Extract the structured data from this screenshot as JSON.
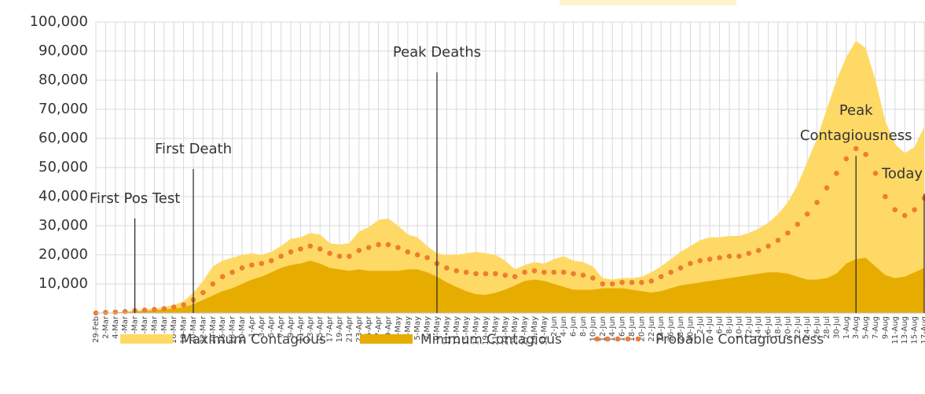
{
  "chart_data": {
    "type": "area",
    "categories": [
      "29-Feb",
      "2-Mar",
      "4-Mar",
      "6-Mar",
      "8-Mar",
      "10-Mar",
      "12-Mar",
      "14-Mar",
      "16-Mar",
      "18-Mar",
      "20-Mar",
      "22-Mar",
      "24-Mar",
      "26-Mar",
      "28-Mar",
      "30-Mar",
      "1-Apr",
      "3-Apr",
      "5-Apr",
      "7-Apr",
      "9-Apr",
      "11-Apr",
      "13-Apr",
      "15-Apr",
      "17-Apr",
      "19-Apr",
      "21-Apr",
      "23-Apr",
      "25-Apr",
      "27-Apr",
      "29-Apr",
      "1-May",
      "3-May",
      "5-May",
      "7-May",
      "9-May",
      "11-May",
      "13-May",
      "15-May",
      "17-May",
      "19-May",
      "21-May",
      "23-May",
      "25-May",
      "27-May",
      "29-May",
      "31-May",
      "2-Jun",
      "4-Jun",
      "6-Jun",
      "8-Jun",
      "10-Jun",
      "12-Jun",
      "14-Jun",
      "16-Jun",
      "18-Jun",
      "20-Jun",
      "22-Jun",
      "24-Jun",
      "26-Jun",
      "28-Jun",
      "30-Jun",
      "2-Jul",
      "4-Jul",
      "6-Jul",
      "8-Jul",
      "10-Jul",
      "12-Jul",
      "14-Jul",
      "16-Jul",
      "18-Jul",
      "20-Jul",
      "22-Jul",
      "24-Jul",
      "26-Jul",
      "28-Jul",
      "30-Jul",
      "1-Aug",
      "3-Aug",
      "5-Aug",
      "7-Aug",
      "9-Aug",
      "11-Aug",
      "13-Aug",
      "15-Aug",
      "17-Aug"
    ],
    "series": [
      {
        "name": "Maximum Contagious",
        "color": "#ffd966",
        "style": "area",
        "values": [
          0,
          0,
          200,
          500,
          800,
          1200,
          1500,
          2000,
          2800,
          4000,
          7000,
          11000,
          16000,
          18000,
          19000,
          20000,
          20500,
          20000,
          21000,
          23000,
          25500,
          26000,
          27500,
          27000,
          24000,
          23500,
          24000,
          28000,
          29500,
          32000,
          32500,
          30000,
          27000,
          26000,
          23000,
          20500,
          20000,
          20000,
          20500,
          21000,
          20500,
          20000,
          18000,
          15000,
          16500,
          17500,
          17000,
          18500,
          19500,
          18000,
          17500,
          16000,
          12000,
          11500,
          12000,
          12000,
          12500,
          14000,
          16000,
          18500,
          21000,
          23000,
          25000,
          26000,
          26000,
          26500,
          26500,
          27500,
          29000,
          31000,
          34000,
          38000,
          44000,
          52000,
          60000,
          70000,
          80000,
          88000,
          93500,
          91000,
          80000,
          66000,
          58000,
          55000,
          57000,
          64000
        ]
      },
      {
        "name": "Minimum Contagious",
        "color": "#e6ad00",
        "style": "area",
        "values": [
          0,
          0,
          100,
          300,
          500,
          700,
          900,
          1200,
          1500,
          2000,
          3000,
          4500,
          6000,
          7500,
          8500,
          10000,
          11500,
          12500,
          14000,
          15500,
          16500,
          17000,
          18000,
          17000,
          15500,
          15000,
          14500,
          15000,
          14500,
          14500,
          14500,
          14500,
          15000,
          15000,
          14000,
          12500,
          10500,
          9000,
          7500,
          6500,
          6200,
          7000,
          8000,
          9500,
          11000,
          11500,
          11000,
          10000,
          9000,
          8000,
          8000,
          8000,
          8500,
          8500,
          8500,
          8000,
          7500,
          7000,
          7500,
          8500,
          9500,
          10000,
          10500,
          11000,
          11500,
          12000,
          12500,
          13000,
          13500,
          14000,
          14000,
          13500,
          12500,
          11500,
          11500,
          12000,
          13500,
          17000,
          18500,
          19000,
          16000,
          13000,
          12000,
          12500,
          14000,
          15500
        ]
      },
      {
        "name": "Probable Contagiousness",
        "color": "#ed7d31",
        "style": "dots",
        "values": [
          0,
          200,
          300,
          500,
          800,
          1000,
          1200,
          1500,
          2000,
          2800,
          4500,
          7000,
          10000,
          12500,
          14000,
          15500,
          16500,
          17000,
          18000,
          19500,
          21000,
          22000,
          23000,
          22000,
          20500,
          19500,
          19500,
          21500,
          22500,
          23500,
          23500,
          22500,
          21000,
          20000,
          19000,
          17000,
          15500,
          14500,
          14000,
          13500,
          13500,
          13500,
          13000,
          12500,
          14000,
          14500,
          14000,
          14000,
          14000,
          13500,
          13000,
          12000,
          10000,
          10000,
          10500,
          10500,
          10500,
          11000,
          12500,
          14000,
          15500,
          17000,
          18000,
          18500,
          19000,
          19500,
          19500,
          20500,
          21500,
          23000,
          25000,
          27500,
          30500,
          34000,
          38000,
          43000,
          48000,
          53000,
          56500,
          54500,
          48000,
          40000,
          35500,
          33500,
          35500,
          39500
        ]
      }
    ],
    "ylim": [
      0,
      100000
    ],
    "yticks": [
      {
        "value": 10000,
        "label": "10,000"
      },
      {
        "value": 20000,
        "label": "20,000"
      },
      {
        "value": 30000,
        "label": "30,000"
      },
      {
        "value": 40000,
        "label": "40,000"
      },
      {
        "value": 50000,
        "label": "50,000"
      },
      {
        "value": 60000,
        "label": "60,000"
      },
      {
        "value": 70000,
        "label": "70,000"
      },
      {
        "value": 80000,
        "label": "80,000"
      },
      {
        "value": 90000,
        "label": "90,000"
      },
      {
        "value": 100000,
        "label": "100,000"
      }
    ],
    "grid": true,
    "legend": "bottom",
    "annotations": [
      {
        "lines": [
          "First Pos Test"
        ],
        "x": "8-Mar",
        "y": 32500
      },
      {
        "lines": [
          "First Death"
        ],
        "x": "20-Mar",
        "y": 49500
      },
      {
        "lines": [
          "Peak Deaths"
        ],
        "x": "9-May",
        "y": 82700
      },
      {
        "lines": [
          "Peak",
          "Contagiousness"
        ],
        "x": "3-Aug",
        "y": 54000
      },
      {
        "lines": [
          "Today"
        ],
        "x": "17-Aug",
        "y": 41000
      }
    ]
  }
}
